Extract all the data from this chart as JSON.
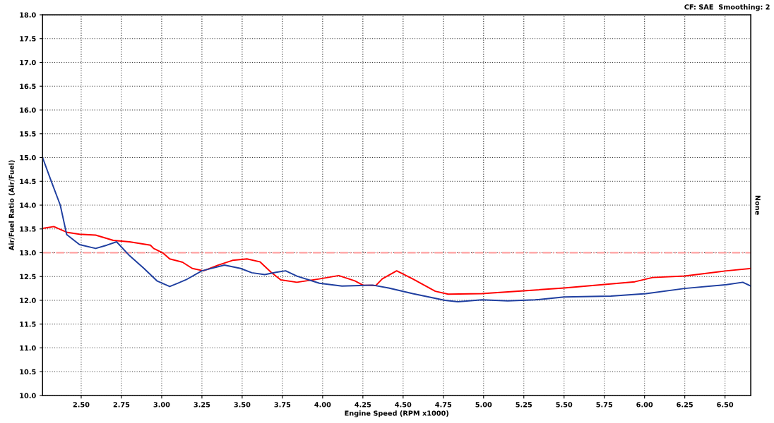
{
  "chart_data": {
    "type": "line",
    "xlabel": "Engine Speed (RPM x1000)",
    "ylabel": "Air/Fuel Ratio (Air/Fuel)",
    "y2label": "None",
    "annotations": [
      "CF: SAE  Smoothing: 2"
    ],
    "xlim": [
      2.26,
      6.66
    ],
    "ylim": [
      10.0,
      18.0
    ],
    "xticks": [
      {
        "value": 2.5,
        "label": "2.50"
      },
      {
        "value": 2.75,
        "label": "2.75"
      },
      {
        "value": 3.0,
        "label": "3.00"
      },
      {
        "value": 3.25,
        "label": "3.25"
      },
      {
        "value": 3.5,
        "label": "3.50"
      },
      {
        "value": 3.75,
        "label": "3.75"
      },
      {
        "value": 4.0,
        "label": "4.00"
      },
      {
        "value": 4.25,
        "label": "4.25"
      },
      {
        "value": 4.5,
        "label": "4.50"
      },
      {
        "value": 4.75,
        "label": "4.75"
      },
      {
        "value": 5.0,
        "label": "5.00"
      },
      {
        "value": 5.25,
        "label": "5.25"
      },
      {
        "value": 5.5,
        "label": "5.50"
      },
      {
        "value": 5.75,
        "label": "5.75"
      },
      {
        "value": 6.0,
        "label": "6.00"
      },
      {
        "value": 6.25,
        "label": "6.25"
      },
      {
        "value": 6.5,
        "label": "6.50"
      }
    ],
    "yticks": [
      {
        "value": 10.0,
        "label": "10.0"
      },
      {
        "value": 10.5,
        "label": "10.5"
      },
      {
        "value": 11.0,
        "label": "11.0"
      },
      {
        "value": 11.5,
        "label": "11.5"
      },
      {
        "value": 12.0,
        "label": "12.0"
      },
      {
        "value": 12.5,
        "label": "12.5"
      },
      {
        "value": 13.0,
        "label": "13.0"
      },
      {
        "value": 13.5,
        "label": "13.5"
      },
      {
        "value": 14.0,
        "label": "14.0"
      },
      {
        "value": 14.5,
        "label": "14.5"
      },
      {
        "value": 15.0,
        "label": "15.0"
      },
      {
        "value": 15.5,
        "label": "15.5"
      },
      {
        "value": 16.0,
        "label": "16.0"
      },
      {
        "value": 16.5,
        "label": "16.5"
      },
      {
        "value": 17.0,
        "label": "17.0"
      },
      {
        "value": 17.5,
        "label": "17.5"
      },
      {
        "value": 18.0,
        "label": "18.0"
      }
    ],
    "grid": true,
    "marker": "none",
    "line_style": "solid",
    "ref_lines": [
      {
        "axis": "y",
        "value": 13.0,
        "label": null,
        "color": "#ff9999",
        "line_style": "dashdot"
      }
    ],
    "series": [
      {
        "color": "#ff0000",
        "x": [
          2.26,
          2.33,
          2.41,
          2.49,
          2.59,
          2.7,
          2.8,
          2.93,
          2.95,
          3.01,
          3.05,
          3.13,
          3.19,
          3.26,
          3.35,
          3.44,
          3.53,
          3.61,
          3.68,
          3.74,
          3.84,
          3.98,
          4.1,
          4.2,
          4.25,
          4.33,
          4.37,
          4.46,
          4.56,
          4.7,
          4.78,
          4.99,
          5.07,
          5.25,
          5.5,
          5.94,
          6.05,
          6.25,
          6.51,
          6.66
        ],
        "values": [
          13.51,
          13.55,
          13.43,
          13.39,
          13.37,
          13.26,
          13.23,
          13.16,
          13.09,
          12.99,
          12.87,
          12.8,
          12.67,
          12.62,
          12.74,
          12.84,
          12.87,
          12.81,
          12.59,
          12.43,
          12.38,
          12.45,
          12.52,
          12.41,
          12.32,
          12.31,
          12.45,
          12.62,
          12.45,
          12.19,
          12.13,
          12.14,
          12.16,
          12.2,
          12.26,
          12.39,
          12.48,
          12.51,
          12.62,
          12.67
        ]
      },
      {
        "color": "#1f3fa0",
        "x": [
          2.26,
          2.31,
          2.37,
          2.41,
          2.49,
          2.59,
          2.66,
          2.72,
          2.8,
          2.89,
          2.97,
          3.05,
          3.15,
          3.25,
          3.39,
          3.49,
          3.56,
          3.64,
          3.71,
          3.77,
          3.84,
          3.98,
          4.12,
          4.31,
          4.41,
          4.56,
          4.76,
          4.84,
          4.99,
          5.15,
          5.32,
          5.5,
          5.79,
          6.01,
          6.25,
          6.51,
          6.61,
          6.66
        ],
        "values": [
          15.0,
          14.54,
          14.0,
          13.38,
          13.17,
          13.09,
          13.16,
          13.23,
          12.94,
          12.67,
          12.41,
          12.29,
          12.43,
          12.62,
          12.74,
          12.67,
          12.58,
          12.54,
          12.59,
          12.62,
          12.51,
          12.36,
          12.3,
          12.32,
          12.26,
          12.14,
          12.0,
          11.97,
          12.01,
          11.99,
          12.01,
          12.07,
          12.09,
          12.14,
          12.25,
          12.33,
          12.38,
          12.3
        ]
      }
    ]
  }
}
